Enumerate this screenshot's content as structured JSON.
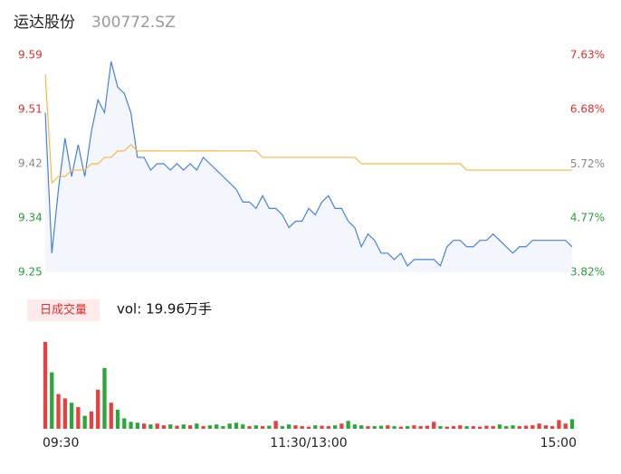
{
  "header": {
    "name": "运达股份",
    "code": "300772.SZ"
  },
  "chart_data": {
    "type": "intraday",
    "x": [
      0,
      3,
      6,
      9,
      12,
      15,
      18,
      21,
      24,
      27,
      30,
      33,
      36,
      39,
      42,
      45,
      48,
      51,
      54,
      57,
      60,
      63,
      66,
      69,
      72,
      75,
      78,
      81,
      84,
      87,
      90,
      93,
      96,
      99,
      102,
      105,
      108,
      111,
      114,
      117,
      120,
      123,
      126,
      129,
      132,
      135,
      138,
      141,
      144,
      147,
      150,
      153,
      156,
      159,
      162,
      165,
      168,
      171,
      174,
      177,
      180,
      183,
      186,
      189,
      192,
      195,
      198,
      201,
      204,
      207,
      210,
      213,
      216,
      219,
      222,
      225,
      228,
      231,
      234,
      237,
      240
    ],
    "xlim": [
      0,
      240
    ],
    "xticks": [
      {
        "value": 0,
        "label": "09:30"
      },
      {
        "value": 120,
        "label": "11:30/13:00"
      },
      {
        "value": 240,
        "label": "15:00"
      }
    ],
    "series": [
      {
        "name": "price",
        "color": "#4a7fe0",
        "values": [
          9.5,
          9.28,
          9.38,
          9.46,
          9.4,
          9.45,
          9.4,
          9.47,
          9.52,
          9.5,
          9.58,
          9.54,
          9.53,
          9.5,
          9.43,
          9.43,
          9.41,
          9.42,
          9.42,
          9.41,
          9.42,
          9.41,
          9.42,
          9.41,
          9.43,
          9.42,
          9.41,
          9.4,
          9.39,
          9.38,
          9.36,
          9.36,
          9.35,
          9.37,
          9.35,
          9.35,
          9.34,
          9.32,
          9.33,
          9.33,
          9.35,
          9.34,
          9.36,
          9.37,
          9.35,
          9.35,
          9.33,
          9.32,
          9.29,
          9.31,
          9.3,
          9.28,
          9.28,
          9.27,
          9.28,
          9.26,
          9.27,
          9.27,
          9.27,
          9.27,
          9.26,
          9.29,
          9.3,
          9.3,
          9.29,
          9.29,
          9.3,
          9.3,
          9.31,
          9.3,
          9.29,
          9.28,
          9.29,
          9.29,
          9.3,
          9.3,
          9.3,
          9.3,
          9.3,
          9.3,
          9.29
        ]
      },
      {
        "name": "average",
        "color": "#f5b942",
        "values": [
          9.56,
          9.39,
          9.4,
          9.4,
          9.41,
          9.41,
          9.41,
          9.42,
          9.42,
          9.43,
          9.43,
          9.44,
          9.44,
          9.45,
          9.44,
          9.44,
          9.44,
          9.44,
          9.44,
          9.44,
          9.44,
          9.44,
          9.44,
          9.44,
          9.44,
          9.44,
          9.44,
          9.44,
          9.44,
          9.44,
          9.44,
          9.44,
          9.44,
          9.43,
          9.43,
          9.43,
          9.43,
          9.43,
          9.43,
          9.43,
          9.43,
          9.43,
          9.43,
          9.43,
          9.43,
          9.43,
          9.43,
          9.43,
          9.42,
          9.42,
          9.42,
          9.42,
          9.42,
          9.42,
          9.42,
          9.42,
          9.42,
          9.42,
          9.42,
          9.42,
          9.42,
          9.42,
          9.42,
          9.42,
          9.41,
          9.41,
          9.41,
          9.41,
          9.41,
          9.41,
          9.41,
          9.41,
          9.41,
          9.41,
          9.41,
          9.41,
          9.41,
          9.41,
          9.41,
          9.41,
          9.41
        ]
      }
    ],
    "ylim": [
      9.25,
      9.59
    ],
    "yticks": [
      9.25,
      {
        "value": 9.335,
        "label": "9.34"
      },
      9.42,
      {
        "value": 9.505,
        "label": "9.51"
      },
      9.59
    ],
    "y2lim": [
      3.82,
      7.63
    ],
    "y2ticks": [
      {
        "value": 3.82,
        "label": "3.82%"
      },
      {
        "value": 4.77,
        "label": "4.77%"
      },
      {
        "value": 5.72,
        "label": "5.72%"
      },
      {
        "value": 6.68,
        "label": "6.68%"
      },
      {
        "value": 7.63,
        "label": "7.63%"
      }
    ],
    "tick_colors": [
      "#2a9d3c",
      "#2a9d3c",
      "#888888",
      "#e03030",
      "#e03030"
    ],
    "volume_label": "日成交量",
    "volume_total": "vol: 19.96万手",
    "volume": [
      10000,
      6500,
      4000,
      3500,
      3000,
      2500,
      1500,
      2000,
      4500,
      7000,
      3000,
      2200,
      1200,
      800,
      700,
      600,
      500,
      600,
      400,
      500,
      350,
      500,
      400,
      600,
      300,
      400,
      500,
      300,
      600,
      700,
      500,
      300,
      400,
      300,
      350,
      900,
      300,
      500,
      400,
      300,
      250,
      400,
      350,
      300,
      400,
      600,
      900,
      500,
      400,
      300,
      300,
      350,
      400,
      300,
      250,
      300,
      400,
      300,
      350,
      800,
      300,
      250,
      300,
      400,
      300,
      300,
      250,
      350,
      300,
      500,
      300,
      400,
      300,
      350,
      400,
      600,
      400,
      300,
      1000,
      600,
      1100
    ],
    "volume_ylim": [
      0,
      10000
    ],
    "up_color": "#e84040",
    "down_color": "#2aa83c"
  }
}
